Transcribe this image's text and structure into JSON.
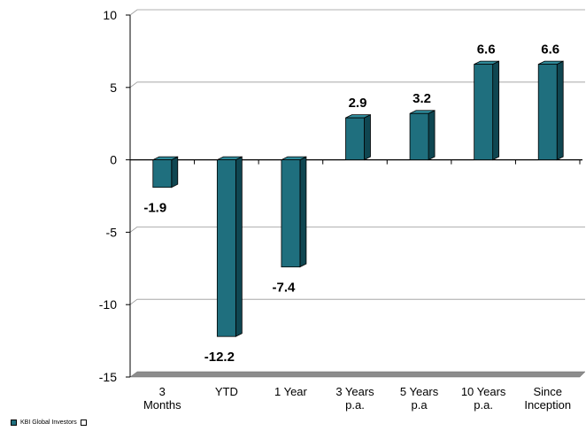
{
  "chart_data": {
    "type": "bar",
    "categories": [
      [
        "3",
        "Months"
      ],
      [
        "YTD"
      ],
      [
        "1 Year"
      ],
      [
        "3 Years",
        "p.a."
      ],
      [
        "5 Years",
        "p.a"
      ],
      [
        "10 Years",
        "p.a."
      ],
      [
        "Since",
        "Inception"
      ]
    ],
    "values": [
      -1.9,
      -12.2,
      -7.4,
      2.9,
      3.2,
      6.6,
      6.6
    ],
    "data_labels": [
      "-1.9",
      "-12.2",
      "-7.4",
      "2.9",
      "3.2",
      "6.6",
      "6.6"
    ],
    "yticks": [
      "10",
      "5",
      "0",
      "-5",
      "-10",
      "-15"
    ],
    "ylim": [
      -15,
      10
    ],
    "grid": true,
    "bar_color": "#1f6f7e",
    "legend_position": "bottom-left"
  },
  "legend": {
    "label": "KBI Global Investors"
  }
}
